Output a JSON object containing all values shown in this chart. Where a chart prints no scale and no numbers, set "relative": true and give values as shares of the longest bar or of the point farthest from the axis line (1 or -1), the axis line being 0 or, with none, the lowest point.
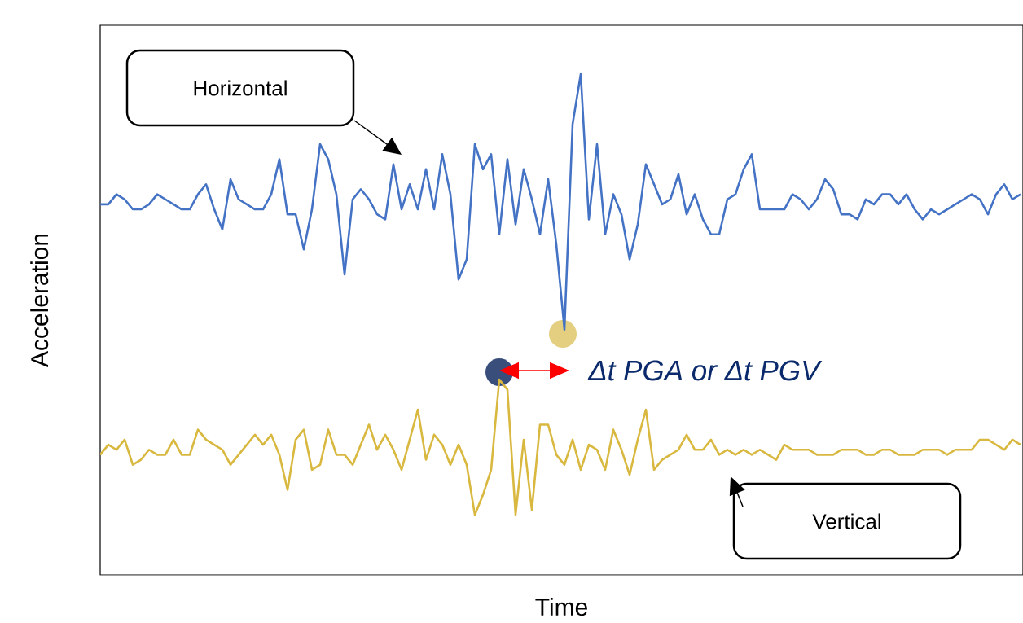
{
  "chart_data": {
    "type": "line",
    "relative": true,
    "tick_labels": false,
    "xlabel": "Time",
    "ylabel": "Acceleration",
    "annotations": [
      "Δt PGA or Δt PGV"
    ],
    "categories": [
      null,
      null,
      null,
      null,
      null,
      null,
      null,
      null,
      null,
      null,
      null,
      null,
      null,
      null,
      null,
      null,
      null,
      null,
      null,
      null,
      null,
      null,
      null,
      null,
      null,
      null,
      null,
      null,
      null,
      null,
      null,
      null,
      null,
      null,
      null,
      null,
      null,
      null,
      null,
      null,
      null,
      null,
      null,
      null,
      null,
      null,
      null,
      null,
      null,
      null,
      null,
      null,
      null,
      null,
      null,
      null,
      null,
      null,
      null,
      null,
      null,
      null,
      null,
      null,
      null,
      null,
      null,
      null,
      null,
      null,
      null,
      null,
      null,
      null,
      null,
      null,
      null,
      null,
      null,
      null,
      null,
      null,
      null,
      null,
      null,
      null,
      null,
      null,
      null,
      null,
      null,
      null,
      null,
      null,
      null,
      null,
      null,
      null,
      null,
      null,
      null,
      null,
      null,
      null,
      null,
      null,
      null,
      null,
      null,
      null,
      null,
      null,
      null,
      null
    ],
    "series": [
      {
        "name": "Horizontal",
        "color": "#4472c4",
        "values": [
          0.74,
          0.74,
          0.76,
          0.75,
          0.73,
          0.73,
          0.74,
          0.76,
          0.75,
          0.74,
          0.73,
          0.73,
          0.76,
          0.78,
          0.73,
          0.69,
          0.79,
          0.75,
          0.74,
          0.73,
          0.73,
          0.76,
          0.83,
          0.72,
          0.72,
          0.65,
          0.73,
          0.86,
          0.83,
          0.76,
          0.6,
          0.75,
          0.77,
          0.75,
          0.72,
          0.71,
          0.82,
          0.73,
          0.78,
          0.73,
          0.81,
          0.73,
          0.84,
          0.76,
          0.59,
          0.63,
          0.86,
          0.81,
          0.84,
          0.68,
          0.83,
          0.7,
          0.81,
          0.75,
          0.68,
          0.79,
          0.66,
          0.49,
          0.9,
          1,
          0.71,
          0.86,
          0.68,
          0.76,
          0.72,
          0.63,
          0.7,
          0.82,
          0.78,
          0.74,
          0.75,
          0.8,
          0.72,
          0.76,
          0.71,
          0.68,
          0.68,
          0.75,
          0.76,
          0.81,
          0.84,
          0.73,
          0.73,
          0.73,
          0.73,
          0.76,
          0.75,
          0.73,
          0.75,
          0.79,
          0.77,
          0.72,
          0.72,
          0.71,
          0.75,
          0.74,
          0.76,
          0.76,
          0.74,
          0.76,
          0.73,
          0.71,
          0.73,
          0.72,
          0.73,
          0.74,
          0.75,
          0.76,
          0.75,
          0.72,
          0.76,
          0.78,
          0.75,
          0.76
        ]
      },
      {
        "name": "Vertical",
        "color": "#d9b840",
        "values": [
          0.24,
          0.26,
          0.25,
          0.27,
          0.22,
          0.23,
          0.25,
          0.24,
          0.24,
          0.27,
          0.24,
          0.24,
          0.29,
          0.27,
          0.26,
          0.25,
          0.22,
          0.24,
          0.26,
          0.28,
          0.26,
          0.28,
          0.24,
          0.17,
          0.27,
          0.29,
          0.21,
          0.22,
          0.29,
          0.24,
          0.24,
          0.22,
          0.26,
          0.3,
          0.25,
          0.28,
          0.25,
          0.21,
          0.27,
          0.33,
          0.23,
          0.28,
          0.26,
          0.22,
          0.26,
          0.22,
          0.12,
          0.16,
          0.21,
          0.39,
          0.37,
          0.12,
          0.27,
          0.13,
          0.3,
          0.3,
          0.24,
          0.22,
          0.27,
          0.21,
          0.26,
          0.25,
          0.21,
          0.29,
          0.25,
          0.2,
          0.27,
          0.33,
          0.21,
          0.23,
          0.24,
          0.25,
          0.28,
          0.25,
          0.25,
          0.27,
          0.24,
          0.25,
          0.24,
          0.25,
          0.24,
          0.25,
          0.24,
          0.23,
          0.26,
          0.25,
          0.25,
          0.25,
          0.24,
          0.24,
          0.24,
          0.25,
          0.25,
          0.25,
          0.24,
          0.24,
          0.25,
          0.25,
          0.24,
          0.24,
          0.24,
          0.25,
          0.25,
          0.25,
          0.24,
          0.25,
          0.25,
          0.25,
          0.27,
          0.27,
          0.26,
          0.25,
          0.27,
          0.26
        ]
      }
    ]
  }
}
